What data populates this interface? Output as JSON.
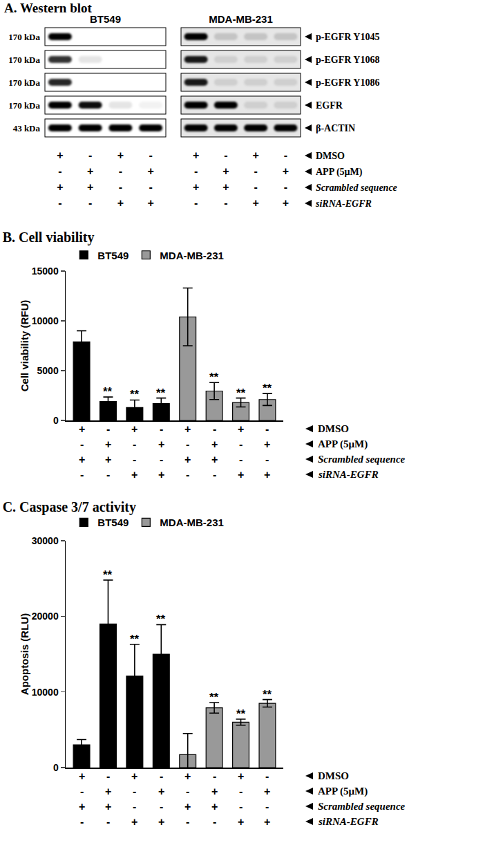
{
  "western_blot": {
    "title": "A. Western blot",
    "cell_lines": [
      "BT549",
      "MDA-MB-231"
    ],
    "rows": [
      {
        "mw": "170 kDa",
        "label": "p-EGFR Y1045",
        "intensity": [
          [
            1,
            0,
            0,
            0
          ],
          [
            1,
            0.15,
            0.15,
            0.15
          ]
        ]
      },
      {
        "mw": "170 kDa",
        "label": "p-EGFR Y1068",
        "intensity": [
          [
            0.8,
            0.1,
            0,
            0
          ],
          [
            0.9,
            0.1,
            0.1,
            0.1
          ]
        ]
      },
      {
        "mw": "170 kDa",
        "label": "p-EGFR Y1086",
        "intensity": [
          [
            0.85,
            0,
            0,
            0
          ],
          [
            0.9,
            0.1,
            0.1,
            0.1
          ]
        ]
      },
      {
        "mw": "170 kDa",
        "label": "EGFR",
        "intensity": [
          [
            1,
            0.95,
            0.1,
            0.05
          ],
          [
            1,
            1,
            0.1,
            0.1
          ]
        ]
      },
      {
        "mw": "43 kDa",
        "label": "β-ACTIN",
        "intensity": [
          [
            1,
            1,
            1,
            1
          ],
          [
            1,
            1,
            1,
            1
          ]
        ]
      }
    ],
    "conditions": [
      {
        "label": "DMSO",
        "signs": [
          "+",
          "-",
          "+",
          "-"
        ]
      },
      {
        "label": "APP (5μM)",
        "signs": [
          "-",
          "+",
          "-",
          "+"
        ]
      },
      {
        "label": "Scrambled sequence",
        "signs": [
          "+",
          "+",
          "-",
          "-"
        ],
        "italic": true
      },
      {
        "label": "siRNA-EGFR",
        "signs": [
          "-",
          "-",
          "+",
          "+"
        ],
        "italic": true
      }
    ]
  },
  "chart_data": [
    {
      "type": "bar",
      "title": "B. Cell viability",
      "y_label": "Cell viability (RFU)",
      "categories": [
        null,
        null,
        null,
        null,
        null,
        null,
        null,
        null
      ],
      "ylim": [
        0,
        15000
      ],
      "yticks": [
        0,
        5000,
        10000,
        15000
      ],
      "grid": false,
      "legend": "top",
      "series": [
        {
          "name": "BT549",
          "color": "#000000",
          "values": [
            7900,
            1900,
            1300,
            1700,
            null,
            null,
            null,
            null
          ],
          "errors": [
            1100,
            450,
            750,
            550,
            null,
            null,
            null,
            null
          ],
          "annotations": [
            null,
            "**",
            "**",
            "**",
            null,
            null,
            null,
            null
          ]
        },
        {
          "name": "MDA-MB-231",
          "color": "#999999",
          "values": [
            null,
            null,
            null,
            null,
            10400,
            2950,
            1800,
            2100
          ],
          "errors": [
            null,
            null,
            null,
            null,
            2900,
            850,
            450,
            600
          ],
          "annotations": [
            null,
            null,
            null,
            null,
            null,
            "**",
            "**",
            "**"
          ]
        }
      ],
      "condition_table": [
        {
          "label": "DMSO",
          "signs": [
            "+",
            "-",
            "+",
            "-",
            "+",
            "-",
            "+",
            "-"
          ]
        },
        {
          "label": "APP (5μM)",
          "signs": [
            "-",
            "+",
            "-",
            "+",
            "-",
            "+",
            "-",
            "+"
          ]
        },
        {
          "label": "Scrambled sequence",
          "signs": [
            "+",
            "+",
            "-",
            "-",
            "+",
            "+",
            "-",
            "-"
          ],
          "italic": true
        },
        {
          "label": "siRNA-EGFR",
          "signs": [
            "-",
            "-",
            "+",
            "+",
            "-",
            "-",
            "+",
            "+"
          ],
          "italic": true
        }
      ]
    },
    {
      "type": "bar",
      "title": "C. Caspase 3/7 activity",
      "y_label": "Apoptosis (RLU)",
      "categories": [
        null,
        null,
        null,
        null,
        null,
        null,
        null,
        null
      ],
      "ylim": [
        0,
        30000
      ],
      "yticks": [
        0,
        10000,
        20000,
        30000
      ],
      "grid": false,
      "legend": "top",
      "series": [
        {
          "name": "BT549",
          "color": "#000000",
          "values": [
            3000,
            19000,
            12100,
            15000,
            null,
            null,
            null,
            null
          ],
          "errors": [
            700,
            5800,
            4200,
            3900,
            null,
            null,
            null,
            null
          ],
          "annotations": [
            null,
            "**",
            "**",
            "**",
            null,
            null,
            null,
            null
          ]
        },
        {
          "name": "MDA-MB-231",
          "color": "#999999",
          "values": [
            null,
            null,
            null,
            null,
            1700,
            7900,
            6000,
            8500
          ],
          "errors": [
            null,
            null,
            null,
            null,
            2800,
            700,
            400,
            500
          ],
          "annotations": [
            null,
            null,
            null,
            null,
            null,
            "**",
            "**",
            "**"
          ]
        }
      ],
      "condition_table": [
        {
          "label": "DMSO",
          "signs": [
            "+",
            "-",
            "+",
            "-",
            "+",
            "-",
            "+",
            "-"
          ]
        },
        {
          "label": "APP (5μM)",
          "signs": [
            "-",
            "+",
            "-",
            "+",
            "-",
            "+",
            "-",
            "+"
          ]
        },
        {
          "label": "Scrambled sequence",
          "signs": [
            "+",
            "+",
            "-",
            "-",
            "+",
            "+",
            "-",
            "-"
          ],
          "italic": true
        },
        {
          "label": "siRNA-EGFR",
          "signs": [
            "-",
            "-",
            "+",
            "+",
            "-",
            "-",
            "+",
            "+"
          ],
          "italic": true
        }
      ]
    }
  ]
}
